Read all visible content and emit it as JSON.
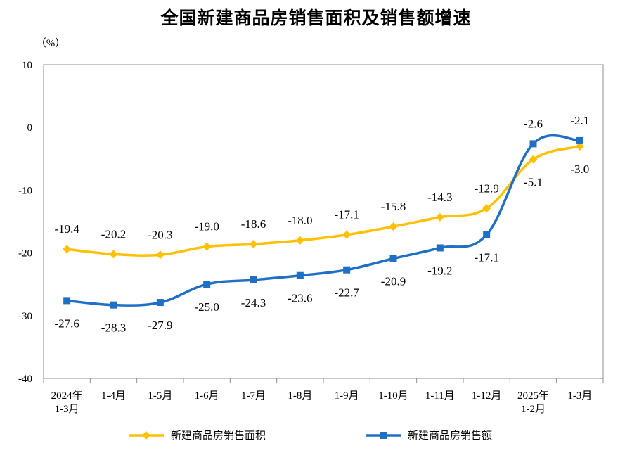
{
  "chart_data": {
    "type": "line",
    "title": "全国新建商品房销售面积及销售额增速",
    "ylabel": "（%）",
    "xlabel": "",
    "ylim": [
      -40,
      10
    ],
    "yticks": [
      10,
      0,
      -10,
      -20,
      -30,
      -40
    ],
    "grid": false,
    "legend_position": "bottom",
    "categories": [
      [
        "2024年",
        "1-3月"
      ],
      [
        "1-4月"
      ],
      [
        "1-5月"
      ],
      [
        "1-6月"
      ],
      [
        "1-7月"
      ],
      [
        "1-8月"
      ],
      [
        "1-9月"
      ],
      [
        "1-10月"
      ],
      [
        "1-11月"
      ],
      [
        "1-12月"
      ],
      [
        "2025年",
        "1-2月"
      ],
      [
        "1-3月"
      ]
    ],
    "series": [
      {
        "name": "新建商品房销售面积",
        "color": "#FFC000",
        "marker": "diamond",
        "values": [
          -19.4,
          -20.2,
          -20.3,
          -19.0,
          -18.6,
          -18.0,
          -17.1,
          -15.8,
          -14.3,
          -12.9,
          -5.1,
          -3.0
        ],
        "labels": [
          "-19.4",
          "-20.2",
          "-20.3",
          "-19.0",
          "-18.6",
          "-18.0",
          "-17.1",
          "-15.8",
          "-14.3",
          "-12.9",
          "-5.1",
          "-3.0"
        ],
        "label_side": [
          "above",
          "above",
          "above",
          "above",
          "above",
          "above",
          "above",
          "above",
          "above",
          "above",
          "below",
          "below"
        ]
      },
      {
        "name": "新建商品房销售额",
        "color": "#1F6FC5",
        "marker": "square",
        "values": [
          -27.6,
          -28.3,
          -27.9,
          -25.0,
          -24.3,
          -23.6,
          -22.7,
          -20.9,
          -19.2,
          -17.1,
          -2.6,
          -2.1
        ],
        "labels": [
          "-27.6",
          "-28.3",
          "-27.9",
          "-25.0",
          "-24.3",
          "-23.6",
          "-22.7",
          "-20.9",
          "-19.2",
          "-17.1",
          "-2.6",
          "-2.1"
        ],
        "label_side": [
          "below",
          "below",
          "below",
          "below",
          "below",
          "below",
          "below",
          "below",
          "below",
          "below",
          "above",
          "above"
        ]
      }
    ]
  }
}
